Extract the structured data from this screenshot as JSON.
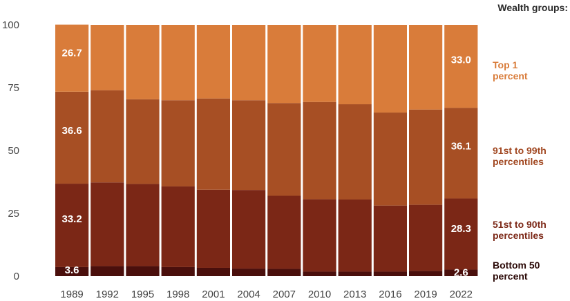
{
  "chart_data": {
    "type": "bar",
    "stacked": true,
    "categories": [
      "1989",
      "1992",
      "1995",
      "1998",
      "2001",
      "2004",
      "2007",
      "2010",
      "2013",
      "2016",
      "2019",
      "2022"
    ],
    "ylim": [
      0,
      100
    ],
    "yticks": [
      0,
      25,
      50,
      75,
      100
    ],
    "legend_title": "Wealth groups:",
    "legend_position": "right",
    "series": [
      {
        "name": "Bottom 50 percent",
        "legend_lines": [
          "Bottom 50",
          "percent"
        ],
        "color": "#4a0f0c",
        "values": [
          3.6,
          4.0,
          4.0,
          3.6,
          3.3,
          3.0,
          2.9,
          1.8,
          1.8,
          1.8,
          2.1,
          2.6
        ]
      },
      {
        "name": "51st to 90th percentiles",
        "legend_lines": [
          "51st to 90th",
          "percentiles"
        ],
        "color": "#7b2716",
        "legend_color": "#7b2716",
        "values": [
          33.2,
          33.3,
          32.7,
          32.1,
          31.1,
          31.3,
          29.1,
          28.8,
          28.7,
          26.3,
          26.3,
          28.3
        ]
      },
      {
        "name": "91st to 99th percentiles",
        "legend_lines": [
          "91st to 99th",
          "percentiles"
        ],
        "color": "#a74f24",
        "legend_color": "#a0461f",
        "values": [
          36.6,
          36.7,
          33.7,
          34.3,
          36.3,
          35.7,
          36.9,
          38.7,
          37.9,
          37.0,
          37.9,
          36.1
        ]
      },
      {
        "name": "Top 1 percent",
        "legend_lines": [
          "Top 1",
          "percent"
        ],
        "color": "#d97c3a",
        "legend_color": "#d97c3a",
        "values": [
          26.7,
          26.0,
          29.6,
          30.0,
          29.3,
          30.0,
          31.1,
          30.7,
          31.6,
          34.9,
          33.7,
          33.0
        ]
      }
    ],
    "data_labels": [
      {
        "category": "1989",
        "series": "Bottom 50 percent",
        "text": "3.6"
      },
      {
        "category": "1989",
        "series": "51st to 90th percentiles",
        "text": "33.2"
      },
      {
        "category": "1989",
        "series": "91st to 99th percentiles",
        "text": "36.6"
      },
      {
        "category": "1989",
        "series": "Top 1 percent",
        "text": "26.7"
      },
      {
        "category": "2022",
        "series": "Bottom 50 percent",
        "text": "2.6"
      },
      {
        "category": "2022",
        "series": "51st to 90th percentiles",
        "text": "28.3"
      },
      {
        "category": "2022",
        "series": "91st to 99th percentiles",
        "text": "36.1"
      },
      {
        "category": "2022",
        "series": "Top 1 percent",
        "text": "33.0"
      }
    ]
  }
}
